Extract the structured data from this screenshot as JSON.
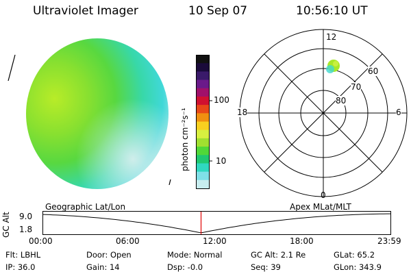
{
  "header": {
    "instrument": "Ultraviolet Imager",
    "date": "10 Sep 07",
    "time": "10:56:10 UT"
  },
  "colorbar": {
    "unit_label": "photon cm⁻²s⁻¹",
    "ticks": [
      "100",
      "10"
    ],
    "colors": [
      "#111111",
      "#1a0a3a",
      "#3a1a6a",
      "#6a1a8a",
      "#a0106a",
      "#d01030",
      "#e84818",
      "#f09010",
      "#f8d020",
      "#d8f040",
      "#a0e030",
      "#50d838",
      "#20c870",
      "#30d8c0",
      "#80e0e8",
      "#c8eef0"
    ]
  },
  "polar_plot": {
    "labels": {
      "top": "12",
      "bottom": "0",
      "left": "18",
      "right": "6",
      "ring_60": "60",
      "ring_70": "70",
      "ring_80": "80"
    }
  },
  "timeline": {
    "y_axis_label": "GC Alt",
    "y_ticks": [
      "9.0",
      "1.8"
    ],
    "left_caption": "Geographic Lat/Lon",
    "right_caption": "Apex MLat/MLT",
    "time_ticks": [
      "00:00",
      "06:00",
      "12:00",
      "18:00",
      "23:59"
    ],
    "marker_time_hours": 10.936
  },
  "footer": {
    "row1": [
      "Flt: LBHL",
      "Door: Open",
      "Mode: Normal",
      "GC Alt: 2.1 Re",
      "GLat:  65.2"
    ],
    "row2": [
      "IP: 36.0",
      "Gain: 14",
      "Dsp:  -0.0",
      "Seq: 39",
      "GLon: 343.9"
    ]
  },
  "colors": {
    "disk_bright": "#b8ec28",
    "disk_mid": "#58d840",
    "disk_dim": "#30d8c8",
    "disk_faint": "#c8ecec",
    "marker": "#e00000"
  }
}
